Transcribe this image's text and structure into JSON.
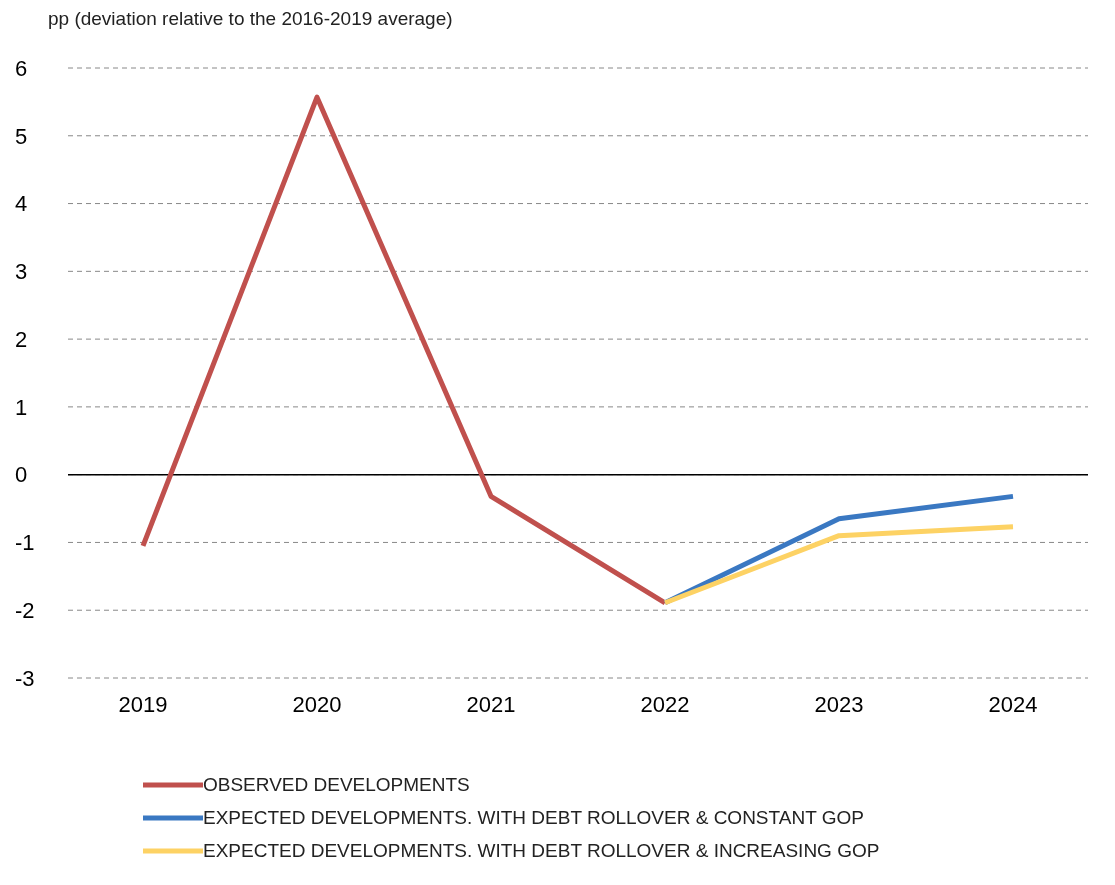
{
  "chart_data": {
    "type": "line",
    "annotations": [
      "pp (deviation relative to the 2016-2019 average)"
    ],
    "categories": [
      "2019",
      "2020",
      "2021",
      "2022",
      "2023",
      "2024"
    ],
    "series": [
      {
        "name": "OBSERVED DEVELOPMENTS",
        "color": "#c0504d",
        "values": [
          -1.05,
          5.57,
          -0.32,
          -1.89,
          null,
          null
        ]
      },
      {
        "name": "EXPECTED DEVELOPMENTS. WITH DEBT ROLLOVER & CONSTANT GOP",
        "color": "#3a78c2",
        "values": [
          null,
          null,
          null,
          -1.89,
          -0.65,
          -0.32
        ]
      },
      {
        "name": "EXPECTED DEVELOPMENTS. WITH DEBT ROLLOVER & INCREASING GOP",
        "color": "#fdd264",
        "values": [
          null,
          null,
          null,
          -1.89,
          -0.9,
          -0.77
        ]
      }
    ],
    "ylim": [
      -3,
      6
    ],
    "yticks": [
      -3,
      -2,
      -1,
      0,
      1,
      2,
      3,
      4,
      5,
      6
    ],
    "grid": "y",
    "legend": "bottom",
    "marker": "none",
    "line_style": "solid",
    "ref_lines": [
      {
        "axis": "y",
        "value": 0,
        "color": "#000000"
      }
    ]
  }
}
